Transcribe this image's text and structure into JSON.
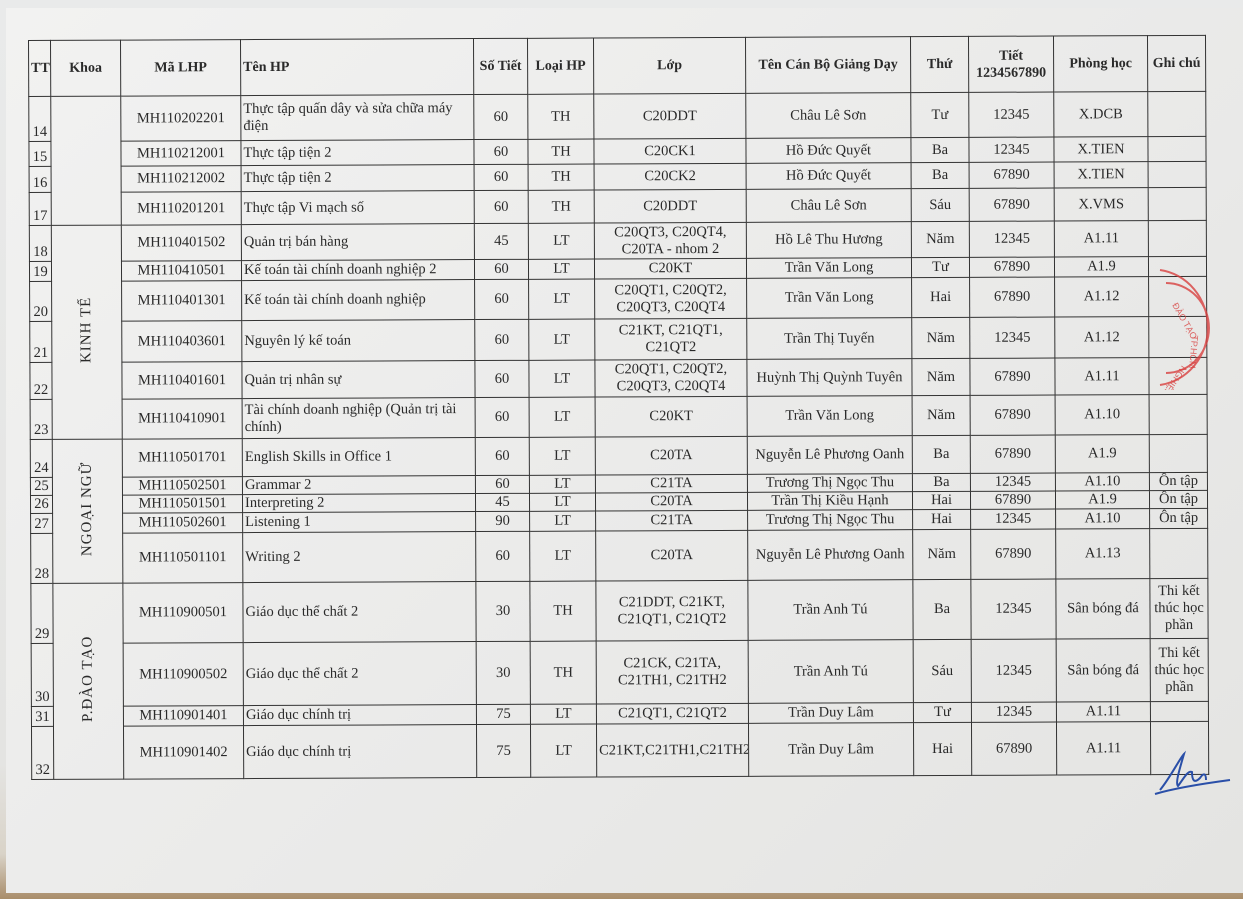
{
  "headers": {
    "tt": "TT",
    "khoa": "Khoa",
    "ma": "Mã LHP",
    "ten": "Tên HP",
    "sotiet": "Số Tiết",
    "loai": "Loại HP",
    "lop": "Lớp",
    "gv": "Tên Cán Bộ Giảng Dạy",
    "thu": "Thứ",
    "tiet": "Tiết 1234567890",
    "phong": "Phòng học",
    "ghichu": "Ghi chú"
  },
  "groups": [
    {
      "khoa": "",
      "start": 0,
      "span": 4
    },
    {
      "khoa": "KINH TẾ",
      "start": 4,
      "span": 6
    },
    {
      "khoa": "NGOẠI NGỮ",
      "start": 10,
      "span": 5
    },
    {
      "khoa": "P.ĐÀO TẠO",
      "start": 15,
      "span": 4
    }
  ],
  "rows": [
    {
      "tt": "14",
      "ma": "MH110202201",
      "ten": "Thực tập quấn dây và sửa chữa máy điện",
      "sotiet": "60",
      "loai": "TH",
      "lop": "C20DDT",
      "gv": "Châu Lê  Sơn",
      "thu": "Tư",
      "tiet": "12345",
      "phong": "X.DCB",
      "ghichu": ""
    },
    {
      "tt": "15",
      "ma": "MH110212001",
      "ten": "Thực tập tiện 2",
      "sotiet": "60",
      "loai": "TH",
      "lop": "C20CK1",
      "gv": "Hồ Đức Quyết",
      "thu": "Ba",
      "tiet": "12345",
      "phong": "X.TIEN",
      "ghichu": ""
    },
    {
      "tt": "16",
      "ma": "MH110212002",
      "ten": "Thực tập tiện 2",
      "sotiet": "60",
      "loai": "TH",
      "lop": "C20CK2",
      "gv": "Hồ Đức Quyết",
      "thu": "Ba",
      "tiet": "67890",
      "phong": "X.TIEN",
      "ghichu": ""
    },
    {
      "tt": "17",
      "ma": "MH110201201",
      "ten": "Thực tập Vi mạch số",
      "sotiet": "60",
      "loai": "TH",
      "lop": "C20DDT",
      "gv": "Châu Lê  Sơn",
      "thu": "Sáu",
      "tiet": "67890",
      "phong": "X.VMS",
      "ghichu": ""
    },
    {
      "tt": "18",
      "ma": "MH110401502",
      "ten": "Quản trị bán hàng",
      "sotiet": "45",
      "loai": "LT",
      "lop": "C20QT3, C20QT4, C20TA - nhom 2",
      "gv": "Hồ Lê Thu Hương",
      "thu": "Năm",
      "tiet": "12345",
      "phong": "A1.11",
      "ghichu": ""
    },
    {
      "tt": "19",
      "ma": "MH110410501",
      "ten": "Kế toán tài chính doanh nghiệp 2",
      "sotiet": "60",
      "loai": "LT",
      "lop": "C20KT",
      "gv": "Trần Văn Long",
      "thu": "Tư",
      "tiet": "67890",
      "phong": "A1.9",
      "ghichu": ""
    },
    {
      "tt": "20",
      "ma": "MH110401301",
      "ten": "Kế toán tài chính doanh nghiệp",
      "sotiet": "60",
      "loai": "LT",
      "lop": "C20QT1, C20QT2, C20QT3, C20QT4",
      "gv": "Trần Văn Long",
      "thu": "Hai",
      "tiet": "67890",
      "phong": "A1.12",
      "ghichu": ""
    },
    {
      "tt": "21",
      "ma": "MH110403601",
      "ten": "Nguyên lý kế toán",
      "sotiet": "60",
      "loai": "LT",
      "lop": "C21KT, C21QT1, C21QT2",
      "gv": "Trần Thị Tuyến",
      "thu": "Năm",
      "tiet": "12345",
      "phong": "A1.12",
      "ghichu": ""
    },
    {
      "tt": "22",
      "ma": "MH110401601",
      "ten": "Quản trị nhân sự",
      "sotiet": "60",
      "loai": "LT",
      "lop": "C20QT1, C20QT2, C20QT3, C20QT4",
      "gv": "Huỳnh Thị Quỳnh Tuyên",
      "thu": "Năm",
      "tiet": "67890",
      "phong": "A1.11",
      "ghichu": ""
    },
    {
      "tt": "23",
      "ma": "MH110410901",
      "ten": "Tài chính doanh nghiệp (Quản trị tài chính)",
      "sotiet": "60",
      "loai": "LT",
      "lop": "C20KT",
      "gv": "Trần Văn Long",
      "thu": "Năm",
      "tiet": "67890",
      "phong": "A1.10",
      "ghichu": ""
    },
    {
      "tt": "24",
      "ma": "MH110501701",
      "ten": "English Skills  in Office 1",
      "sotiet": "60",
      "loai": "LT",
      "lop": "C20TA",
      "gv": "Nguyễn Lê Phương Oanh",
      "thu": "Ba",
      "tiet": "67890",
      "phong": "A1.9",
      "ghichu": ""
    },
    {
      "tt": "25",
      "ma": "MH110502501",
      "ten": "Grammar 2",
      "sotiet": "60",
      "loai": "LT",
      "lop": "C21TA",
      "gv": "Trương Thị Ngọc Thu",
      "thu": "Ba",
      "tiet": "12345",
      "phong": "A1.10",
      "ghichu": "Ôn tập"
    },
    {
      "tt": "26",
      "ma": "MH110501501",
      "ten": "Interpreting 2",
      "sotiet": "45",
      "loai": "LT",
      "lop": "C20TA",
      "gv": "Trần Thị Kiều Hạnh",
      "thu": "Hai",
      "tiet": "67890",
      "phong": "A1.9",
      "ghichu": "Ôn tập"
    },
    {
      "tt": "27",
      "ma": "MH110502601",
      "ten": "Listening 1",
      "sotiet": "90",
      "loai": "LT",
      "lop": "C21TA",
      "gv": "Trương Thị Ngọc Thu",
      "thu": "Hai",
      "tiet": "12345",
      "phong": "A1.10",
      "ghichu": "Ôn tập"
    },
    {
      "tt": "28",
      "ma": "MH110501101",
      "ten": "Writing 2",
      "sotiet": "60",
      "loai": "LT",
      "lop": "C20TA",
      "gv": "Nguyễn Lê Phương Oanh",
      "thu": "Năm",
      "tiet": "67890",
      "phong": "A1.13",
      "ghichu": ""
    },
    {
      "tt": "29",
      "ma": "MH110900501",
      "ten": "Giáo dục thể chất 2",
      "sotiet": "30",
      "loai": "TH",
      "lop": "C21DDT, C21KT, C21QT1, C21QT2",
      "gv": "Trần Anh Tú",
      "thu": "Ba",
      "tiet": "12345",
      "phong": "Sân bóng đá",
      "ghichu": "Thi kết thúc học phần"
    },
    {
      "tt": "30",
      "ma": "MH110900502",
      "ten": "Giáo dục thể chất 2",
      "sotiet": "30",
      "loai": "TH",
      "lop": "C21CK, C21TA, C21TH1, C21TH2",
      "gv": "Trần Anh Tú",
      "thu": "Sáu",
      "tiet": "12345",
      "phong": "Sân bóng đá",
      "ghichu": "Thi kết thúc học phần"
    },
    {
      "tt": "31",
      "ma": "MH110901401",
      "ten": "Giáo dục chính trị",
      "sotiet": "75",
      "loai": "LT",
      "lop": "C21QT1, C21QT2",
      "gv": "Trần Duy Lâm",
      "thu": "Tư",
      "tiet": "12345",
      "phong": "A1.11",
      "ghichu": ""
    },
    {
      "tt": "32",
      "ma": "MH110901402",
      "ten": "Giáo dục chính trị",
      "sotiet": "75",
      "loai": "LT",
      "lop": "C21KT,C21TH1,C21TH2",
      "gv": "Trần Duy Lâm",
      "thu": "Hai",
      "tiet": "67890",
      "phong": "A1.11",
      "ghichu": ""
    }
  ],
  "stamp": {
    "text": "ĐÀO TẠO NGHIỆP TP.HCM",
    "color": "#d8403f"
  },
  "signature": {
    "color": "#2a4fa8"
  }
}
